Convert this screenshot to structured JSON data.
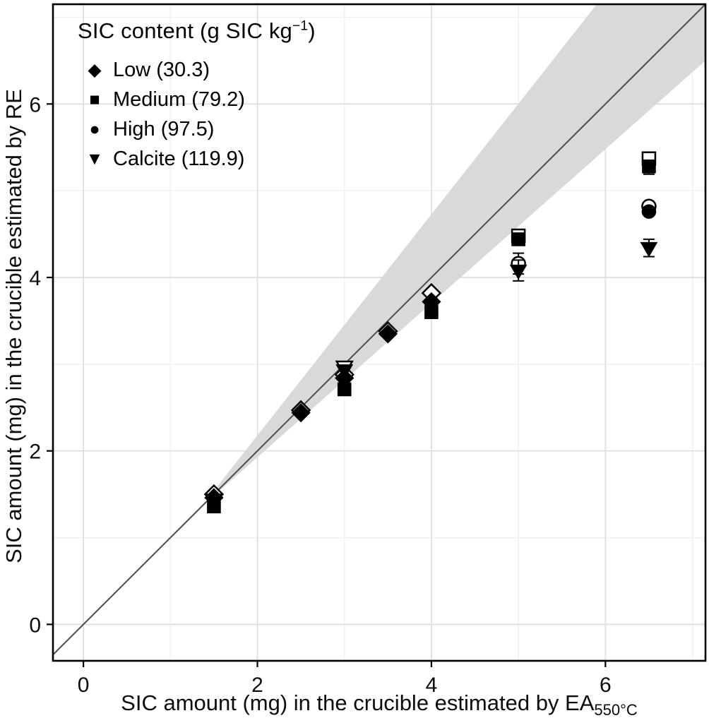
{
  "chart_data": {
    "type": "scatter",
    "title": "",
    "xlabel_main": "SIC amount (mg) in the crucible estimated by EA",
    "xlabel_sub": "550°C",
    "ylabel": "SIC amount (mg) in the crucible estimated by RE",
    "xlim": [
      -0.35,
      7.15
    ],
    "ylim": [
      -0.42,
      7.15
    ],
    "x_major_ticks": [
      0,
      2,
      4,
      6
    ],
    "y_major_ticks": [
      0,
      2,
      4,
      6
    ],
    "x_minor_ticks": [
      1,
      3,
      5,
      7
    ],
    "y_minor_ticks": [
      1,
      3,
      5,
      7
    ],
    "grid": true,
    "legend_position": "top-left",
    "identity_line": {
      "x1": -0.35,
      "y1": -0.35,
      "x2": 7.15,
      "y2": 7.15
    },
    "confidence_band": [
      [
        1.35,
        1.35
      ],
      [
        5.9,
        7.15
      ],
      [
        7.15,
        7.15
      ],
      [
        7.15,
        6.5
      ]
    ],
    "legend": {
      "title_main": "SIC content (g SIC kg",
      "title_sup": "−1",
      "title_close": ")"
    },
    "series": [
      {
        "name": "Low (30.3)",
        "symbol": "diamond",
        "marker_glyph": "◆",
        "points": [
          {
            "x": 1.5,
            "y": 1.5,
            "open": true
          },
          {
            "x": 1.5,
            "y": 1.46,
            "open": false
          },
          {
            "x": 2.5,
            "y": 2.47,
            "open": true
          },
          {
            "x": 2.5,
            "y": 2.44,
            "open": false
          },
          {
            "x": 3.0,
            "y": 2.88,
            "open": true
          },
          {
            "x": 3.0,
            "y": 2.84,
            "open": false
          },
          {
            "x": 3.5,
            "y": 3.38,
            "open": true
          },
          {
            "x": 3.5,
            "y": 3.35,
            "open": false
          },
          {
            "x": 4.0,
            "y": 3.82,
            "open": true
          },
          {
            "x": 4.0,
            "y": 3.72,
            "open": false
          }
        ]
      },
      {
        "name": "Medium (79.2)",
        "symbol": "square",
        "marker_glyph": "■",
        "points": [
          {
            "x": 1.5,
            "y": 1.36,
            "open": false
          },
          {
            "x": 3.0,
            "y": 2.71,
            "open": false
          },
          {
            "x": 4.0,
            "y": 3.6,
            "open": false
          },
          {
            "x": 5.0,
            "y": 4.48,
            "open": true
          },
          {
            "x": 5.0,
            "y": 4.44,
            "open": false
          },
          {
            "x": 6.5,
            "y": 5.37,
            "open": true
          },
          {
            "x": 6.5,
            "y": 5.28,
            "open": false,
            "err": 0.09
          }
        ]
      },
      {
        "name": "High (97.5)",
        "symbol": "circle",
        "marker_glyph": "●",
        "points": [
          {
            "x": 5.0,
            "y": 4.16,
            "open": true,
            "err": 0.12
          },
          {
            "x": 6.5,
            "y": 4.82,
            "open": true
          },
          {
            "x": 6.5,
            "y": 4.76,
            "open": false
          }
        ]
      },
      {
        "name": "Calcite (119.9)",
        "symbol": "triangle-down",
        "marker_glyph": "▼",
        "points": [
          {
            "x": 1.5,
            "y": 1.44,
            "open": false
          },
          {
            "x": 3.0,
            "y": 2.97,
            "open": true
          },
          {
            "x": 3.0,
            "y": 2.93,
            "open": false
          },
          {
            "x": 4.0,
            "y": 3.66,
            "open": false
          },
          {
            "x": 5.0,
            "y": 4.08,
            "open": false,
            "err": 0.12
          },
          {
            "x": 6.5,
            "y": 4.34,
            "open": false,
            "err": 0.1
          }
        ]
      }
    ]
  },
  "colors": {
    "point": "#000000",
    "identity_line": "#4d4d4d",
    "band": "#d9d9d9",
    "grid_major": "#dedede",
    "grid_minor": "#efefef",
    "panel_border": "#000000",
    "tick": "#000000",
    "text": "#0d0d0d",
    "background": "#ffffff"
  }
}
